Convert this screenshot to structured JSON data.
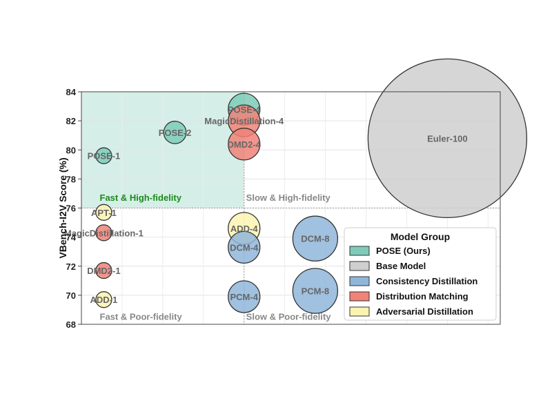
{
  "chart_data": {
    "type": "scatter",
    "ylabel": "VBench-I2V Score (%)",
    "xlabel": "",
    "ylim": [
      68,
      84
    ],
    "yticks": [
      68,
      70,
      72,
      74,
      76,
      78,
      80,
      82,
      84
    ],
    "xlim": [
      0,
      10.3
    ],
    "grid": true,
    "hline": 76,
    "vline": 4,
    "regions": [
      {
        "text": "Fast & High-fidelity",
        "color": "#1a8a1a",
        "x": 0.45,
        "y": 76.5
      },
      {
        "text": "Slow & High-fidelity",
        "color": "#888888",
        "x": 4.05,
        "y": 76.5
      },
      {
        "text": "Fast & Poor-fidelity",
        "color": "#888888",
        "x": 0.45,
        "y": 68.3
      },
      {
        "text": "Slow & Poor-fidelity",
        "color": "#888888",
        "x": 4.05,
        "y": 68.3
      }
    ],
    "legend": {
      "title": "Model Group",
      "position": "lower-right",
      "entries": [
        {
          "name": "POSE (Ours)",
          "color": "#7ecbb8"
        },
        {
          "name": "Base Model",
          "color": "#cfcfcf"
        },
        {
          "name": "Consistency Distillation",
          "color": "#8fb6d9"
        },
        {
          "name": "Distribution Matching",
          "color": "#f08278"
        },
        {
          "name": "Adversarial Distillation",
          "color": "#fbf3b0"
        }
      ]
    },
    "points": [
      {
        "label": "POSE-1",
        "x": 0.55,
        "y": 79.6,
        "size": 1,
        "group": 0
      },
      {
        "label": "POSE-2",
        "x": 2.3,
        "y": 81.2,
        "size": 2,
        "group": 0
      },
      {
        "label": "POSE-4",
        "x": 4.0,
        "y": 82.8,
        "size": 4,
        "group": 0
      },
      {
        "label": "MagicDistillation-4",
        "x": 4.0,
        "y": 82.0,
        "size": 4,
        "group": 3
      },
      {
        "label": "DMD2-4",
        "x": 4.0,
        "y": 80.4,
        "size": 4,
        "group": 3
      },
      {
        "label": "Euler-100",
        "x": 9.0,
        "y": 80.8,
        "size": 100,
        "group": 1
      },
      {
        "label": "APT-1",
        "x": 0.55,
        "y": 75.7,
        "size": 1,
        "group": 4
      },
      {
        "label": "MagicDistillation-1",
        "x": 0.55,
        "y": 74.3,
        "size": 1,
        "group": 3
      },
      {
        "label": "DMD2-1",
        "x": 0.55,
        "y": 71.7,
        "size": 1,
        "group": 3
      },
      {
        "label": "ADD-1",
        "x": 0.55,
        "y": 69.7,
        "size": 1,
        "group": 4
      },
      {
        "label": "ADD-4",
        "x": 4.0,
        "y": 74.6,
        "size": 4,
        "group": 4
      },
      {
        "label": "DCM-4",
        "x": 4.0,
        "y": 73.3,
        "size": 4,
        "group": 2
      },
      {
        "label": "PCM-4",
        "x": 4.0,
        "y": 69.9,
        "size": 4,
        "group": 2
      },
      {
        "label": "DCM-8",
        "x": 5.75,
        "y": 73.9,
        "size": 8,
        "group": 2
      },
      {
        "label": "PCM-8",
        "x": 5.75,
        "y": 70.3,
        "size": 8,
        "group": 2
      }
    ]
  }
}
